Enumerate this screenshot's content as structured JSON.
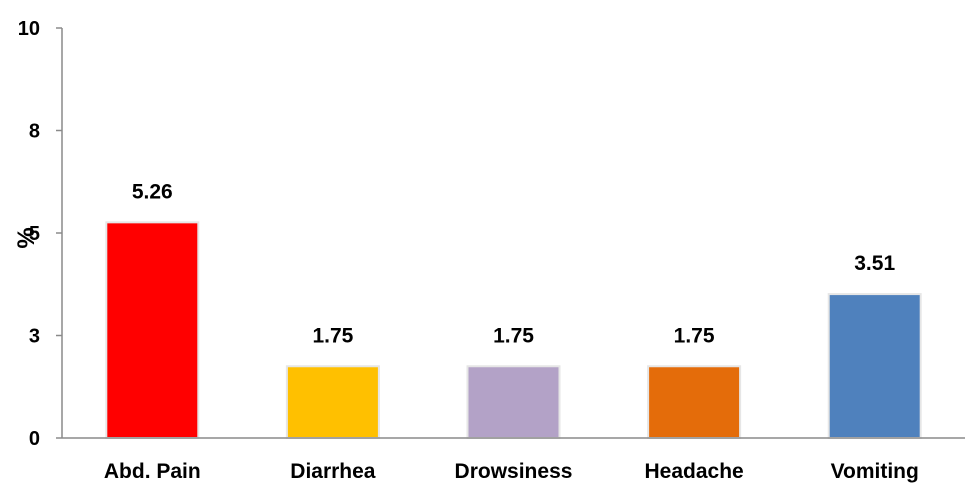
{
  "chart_data": {
    "type": "bar",
    "title": "",
    "xlabel": "",
    "ylabel": "%",
    "ylim": [
      0,
      10
    ],
    "y_ticks": [
      {
        "value": 0,
        "label": "0"
      },
      {
        "value": 2.5,
        "label": "3"
      },
      {
        "value": 5,
        "label": "5"
      },
      {
        "value": 7.5,
        "label": "8"
      },
      {
        "value": 10,
        "label": "10"
      }
    ],
    "grid": false,
    "legend": "none",
    "categories": [
      "Abd. Pain",
      "Diarrhea",
      "Drowsiness",
      "Headache",
      "Vomiting"
    ],
    "values": [
      5.26,
      1.75,
      1.75,
      1.75,
      3.51
    ],
    "value_labels": [
      "5.26",
      "1.75",
      "1.75",
      "1.75",
      "3.51"
    ],
    "colors": [
      "#ff0000",
      "#ffc000",
      "#b3a2c7",
      "#e46c0a",
      "#4f81bd"
    ]
  }
}
